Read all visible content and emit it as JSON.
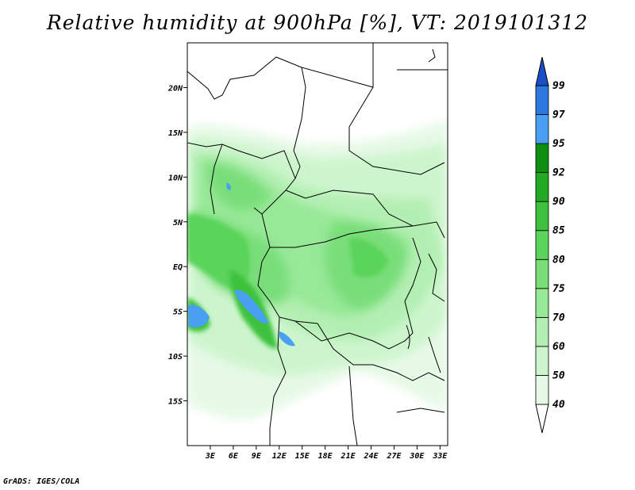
{
  "title": "Relative humidity at 900hPa [%], VT: 2019101312",
  "footer": "GrADS: IGES/COLA",
  "map": {
    "lon_range": [
      0,
      34
    ],
    "lat_range": [
      -20,
      25
    ],
    "lon_ticks": [
      "3E",
      "6E",
      "9E",
      "12E",
      "15E",
      "18E",
      "21E",
      "24E",
      "27E",
      "30E",
      "33E"
    ],
    "lat_ticks": [
      "20N",
      "15N",
      "10N",
      "5N",
      "EQ",
      "5S",
      "10S",
      "15S"
    ]
  },
  "colorbar": {
    "levels": [
      "40",
      "50",
      "60",
      "70",
      "75",
      "80",
      "85",
      "90",
      "92",
      "95",
      "97",
      "99"
    ],
    "colors": [
      "#ffffff",
      "#e6f9e6",
      "#cdf5cd",
      "#b3efb3",
      "#97e897",
      "#79de79",
      "#5ad45a",
      "#3cc23c",
      "#22aa22",
      "#0f8f0f",
      "#4aa0f0",
      "#2a78e0",
      "#1a4fc8"
    ]
  }
}
